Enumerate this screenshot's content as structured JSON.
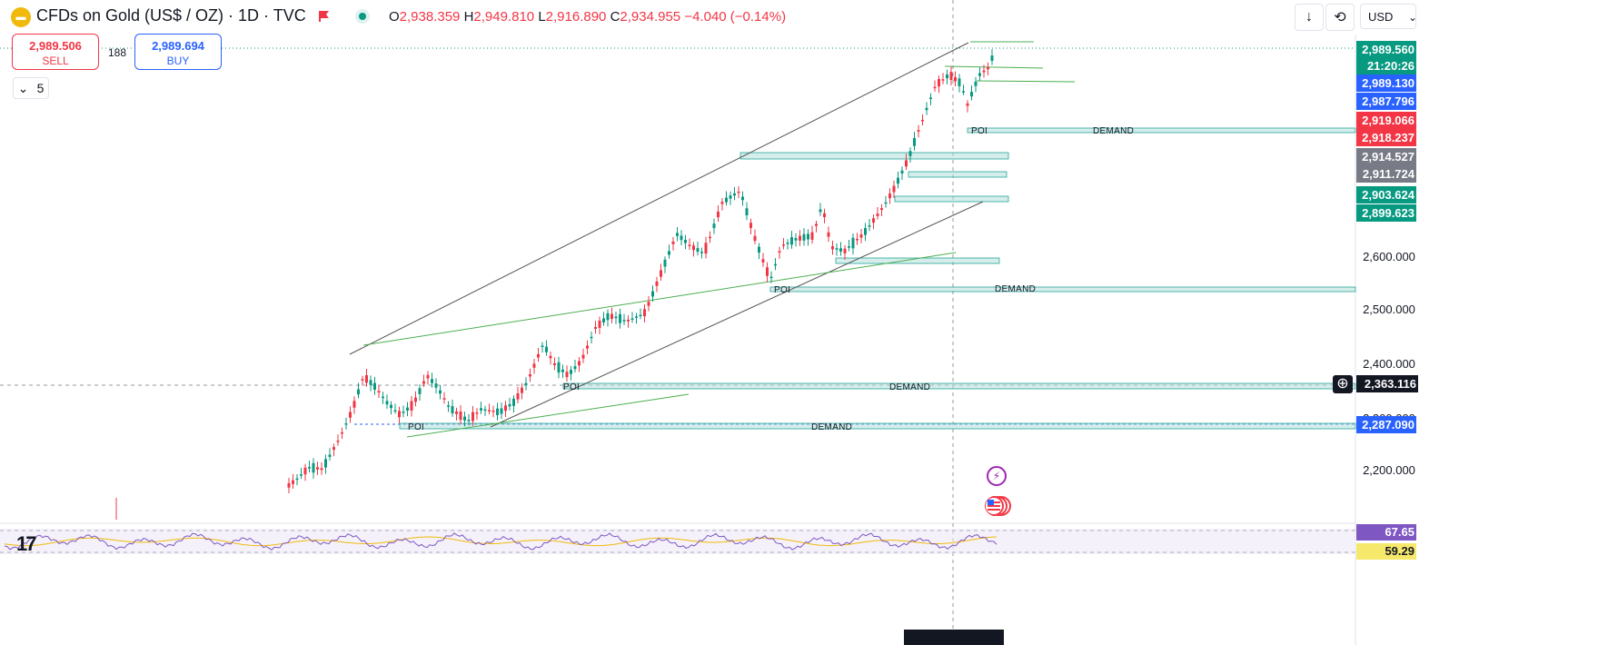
{
  "header": {
    "logo_icon": "gold-bars-icon",
    "symbol": "CFDs on Gold (US$ / OZ) · 1D · TVC",
    "ohlc": {
      "o_label": "O",
      "o": "2,938.359",
      "h_label": "H",
      "h": "2,949.810",
      "l_label": "L",
      "l": "2,916.890",
      "c_label": "C",
      "c": "2,934.955",
      "change": "−4.040 (−0.14%)"
    },
    "currency": "USD",
    "tools": [
      "download-arrow-icon",
      "replay-icon"
    ]
  },
  "trade": {
    "sell_price": "2,989.506",
    "sell_label": "SELL",
    "spread": "188",
    "buy_price": "2,989.694",
    "buy_label": "BUY"
  },
  "legend_toggle": {
    "count": "5"
  },
  "price_axis": {
    "ticks": [
      "2,600.000",
      "2,500.000",
      "2,400.000",
      "2,300.000",
      "2,200.000"
    ],
    "labels": [
      {
        "text": "2,989.560",
        "color": "#089981"
      },
      {
        "text": "21:20:26",
        "color": "#089981"
      },
      {
        "text": "2,989.130",
        "color": "#2962ff"
      },
      {
        "text": "2,987.796",
        "color": "#2962ff"
      },
      {
        "text": "2,919.066",
        "color": "#f23645"
      },
      {
        "text": "2,918.237",
        "color": "#f23645"
      },
      {
        "text": "2,914.527",
        "color": "#787b86"
      },
      {
        "text": "2,911.724",
        "color": "#787b86"
      },
      {
        "text": "2,903.624",
        "color": "#089981"
      },
      {
        "text": "2,899.623",
        "color": "#089981"
      },
      {
        "text": "2,363.116",
        "color": "#131722"
      },
      {
        "text": "2,287.090",
        "color": "#2962ff"
      }
    ],
    "rsi_labels": [
      {
        "text": "67.65",
        "color": "#7e57c2"
      },
      {
        "text": "59.29",
        "color": "#f5e86a"
      }
    ]
  },
  "annotations": {
    "poi": "POI",
    "demand": "DEMAND"
  },
  "colors": {
    "up": "#089981",
    "down": "#f23645",
    "zone": "#b2dfdb",
    "channel": "#555555",
    "trend": "#4caf50",
    "rsi": "#7e57c2",
    "rsi_ma": "#f0b90b"
  }
}
